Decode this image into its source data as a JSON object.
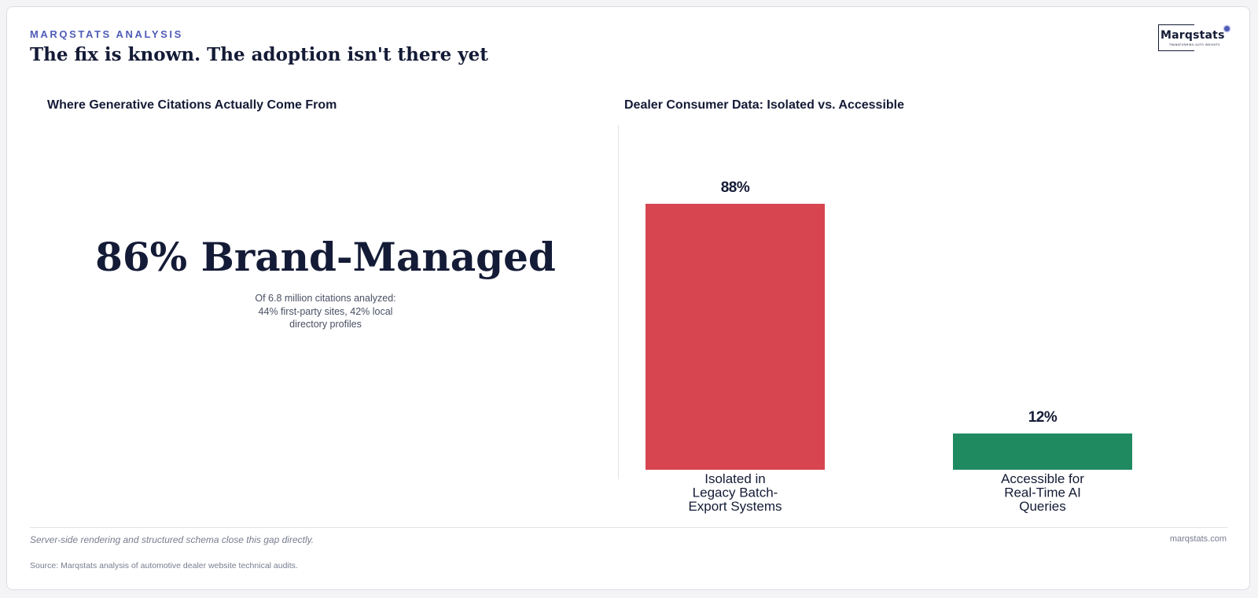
{
  "header": {
    "eyebrow": "MARQSTATS ANALYSIS",
    "title": "The fix is known. The adoption isn't there yet"
  },
  "logo": {
    "wordmark": "Marqstats",
    "tagline": "TRANSFORMING AUTO INSIGHTS"
  },
  "left_panel": {
    "title": "Where Generative Citations Actually Come From",
    "big_stat": "86% Brand-Managed",
    "note": "Of 6.8 million citations analyzed: 44% first-party sites, 42% local directory profiles"
  },
  "right_panel": {
    "title": "Dealer Consumer Data: Isolated vs. Accessible"
  },
  "chart_data": {
    "type": "bar",
    "title": "Dealer Consumer Data: Isolated vs. Accessible",
    "categories": [
      [
        "Isolated in",
        "Legacy Batch-",
        "Export Systems"
      ],
      [
        "Accessible for",
        "Real-Time AI",
        "Queries"
      ]
    ],
    "values": [
      88,
      12
    ],
    "value_labels": [
      "88%",
      "12%"
    ],
    "colors": [
      "#d64550",
      "#1f8a60"
    ],
    "ylim": [
      0,
      88
    ],
    "grid": false,
    "legend": "none"
  },
  "footer": {
    "note": "Server-side rendering and structured schema close this gap directly.",
    "site": "marqstats.com",
    "source": "Source: Marqstats analysis of automotive dealer website technical audits."
  }
}
